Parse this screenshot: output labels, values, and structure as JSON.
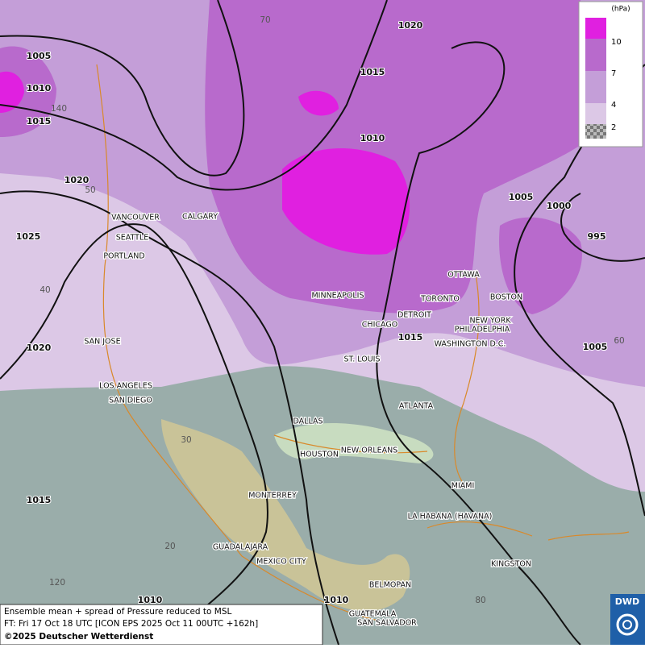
{
  "legend": {
    "unit": "(hPa)",
    "ticks": [
      10,
      7,
      4,
      2
    ]
  },
  "cities": [
    "VANCOUVER",
    "CALGARY",
    "SEATTLE",
    "PORTLAND",
    "MINNEAPOLIS",
    "OTTAWA",
    "TORONTO",
    "DETROIT",
    "BOSTON",
    "NEW YORK",
    "PHILADELPHIA",
    "WASHINGTON D.C.",
    "CHICAGO",
    "ST. LOUIS",
    "SAN JOSE",
    "LOS ANGELES",
    "SAN DIEGO",
    "ATLANTA",
    "DALLAS",
    "HOUSTON",
    "NEW ORLEANS",
    "MIAMI",
    "MONTERREY",
    "LA HABANA (HAVANA)",
    "GUADALAJARA",
    "MEXICO CITY",
    "KINGSTON",
    "BELMOPAN",
    "GUATEMALA",
    "SAN SALVADOR"
  ],
  "isobars": [
    1020,
    1005,
    1015,
    1010,
    1015,
    1010,
    1020,
    1005,
    1000,
    1025,
    995,
    1015,
    1020,
    1005,
    1015,
    1010,
    1010
  ],
  "grid_labels": [
    70,
    140,
    50,
    40,
    30,
    20,
    120,
    60,
    80
  ],
  "footer": {
    "line1": "Ensemble mean + spread of Pressure reduced to MSL",
    "line2": "FT: Fri 17 Oct 18 UTC [ICON EPS 2025 Oct 11 00UTC +162h]",
    "line3": "©2025 Deutscher Wetterdienst"
  },
  "logo": "DWD"
}
